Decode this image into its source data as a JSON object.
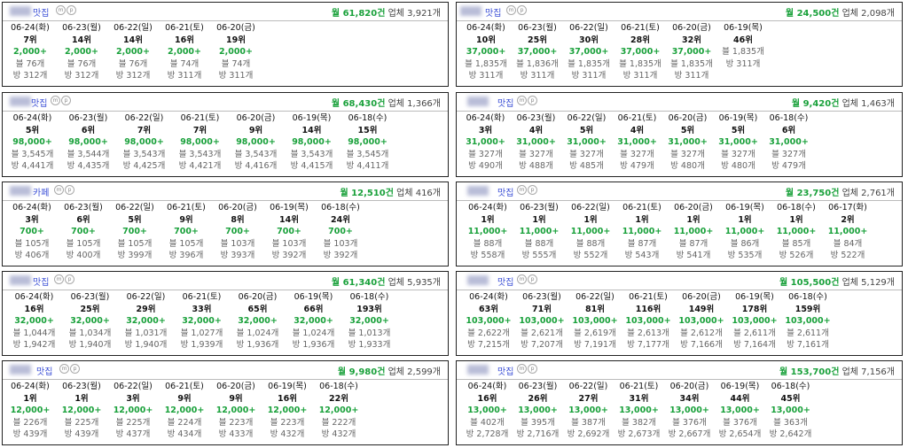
{
  "cards": [
    {
      "category": "맛집",
      "volume": "월 61,820건",
      "industry": "업체 3,921개",
      "days": [
        {
          "date": "06-24(화)",
          "rank": "7위",
          "search": "2,000+",
          "blog": "블 76개",
          "bang": "방 312개"
        },
        {
          "date": "06-23(월)",
          "rank": "14위",
          "search": "2,000+",
          "blog": "블 76개",
          "bang": "방 312개"
        },
        {
          "date": "06-22(일)",
          "rank": "14위",
          "search": "2,000+",
          "blog": "블 76개",
          "bang": "방 312개"
        },
        {
          "date": "06-21(토)",
          "rank": "16위",
          "search": "2,000+",
          "blog": "블 74개",
          "bang": "방 311개"
        },
        {
          "date": "06-20(금)",
          "rank": "19위",
          "search": "2,000+",
          "blog": "블 74개",
          "bang": "방 311개"
        }
      ]
    },
    {
      "category": "맛집",
      "volume": "월 24,500건",
      "industry": "업체 2,098개",
      "days": [
        {
          "date": "06-24(화)",
          "rank": "10위",
          "search": "37,000+",
          "blog": "블 1,835개",
          "bang": "방 311개"
        },
        {
          "date": "06-23(월)",
          "rank": "25위",
          "search": "37,000+",
          "blog": "블 1,836개",
          "bang": "방 311개"
        },
        {
          "date": "06-22(일)",
          "rank": "30위",
          "search": "37,000+",
          "blog": "블 1,835개",
          "bang": "방 311개"
        },
        {
          "date": "06-21(토)",
          "rank": "28위",
          "search": "37,000+",
          "blog": "블 1,835개",
          "bang": "방 311개"
        },
        {
          "date": "06-20(금)",
          "rank": "32위",
          "search": "37,000+",
          "blog": "블 1,835개",
          "bang": "방 311개"
        },
        {
          "date": "06-19(목)",
          "rank": "46위",
          "search": "",
          "blog": "블 1,835개",
          "bang": "방 311개"
        }
      ]
    },
    {
      "category": "맛집",
      "volume": "월 68,430건",
      "industry": "업체 1,366개",
      "days": [
        {
          "date": "06-24(화)",
          "rank": "5위",
          "search": "98,000+",
          "blog": "블 3,545개",
          "bang": "방 4,441개"
        },
        {
          "date": "06-23(월)",
          "rank": "6위",
          "search": "98,000+",
          "blog": "블 3,544개",
          "bang": "방 4,435개"
        },
        {
          "date": "06-22(일)",
          "rank": "7위",
          "search": "98,000+",
          "blog": "블 3,543개",
          "bang": "방 4,425개"
        },
        {
          "date": "06-21(토)",
          "rank": "7위",
          "search": "98,000+",
          "blog": "블 3,543개",
          "bang": "방 4,421개"
        },
        {
          "date": "06-20(금)",
          "rank": "9위",
          "search": "98,000+",
          "blog": "블 3,543개",
          "bang": "방 4,416개"
        },
        {
          "date": "06-19(목)",
          "rank": "14위",
          "search": "98,000+",
          "blog": "블 3,543개",
          "bang": "방 4,415개"
        },
        {
          "date": "06-18(수)",
          "rank": "15위",
          "search": "98,000+",
          "blog": "블 3,545개",
          "bang": "방 4,411개"
        }
      ]
    },
    {
      "category": "맛집",
      "volume": "월 9,420건",
      "industry": "업체 1,463개",
      "days": [
        {
          "date": "06-24(화)",
          "rank": "3위",
          "search": "31,000+",
          "blog": "블 327개",
          "bang": "방 490개"
        },
        {
          "date": "06-23(월)",
          "rank": "4위",
          "search": "31,000+",
          "blog": "블 327개",
          "bang": "방 488개"
        },
        {
          "date": "06-22(일)",
          "rank": "5위",
          "search": "31,000+",
          "blog": "블 327개",
          "bang": "방 485개"
        },
        {
          "date": "06-21(토)",
          "rank": "4위",
          "search": "31,000+",
          "blog": "블 327개",
          "bang": "방 479개"
        },
        {
          "date": "06-20(금)",
          "rank": "5위",
          "search": "31,000+",
          "blog": "블 327개",
          "bang": "방 480개"
        },
        {
          "date": "06-19(목)",
          "rank": "5위",
          "search": "31,000+",
          "blog": "블 327개",
          "bang": "방 480개"
        },
        {
          "date": "06-18(수)",
          "rank": "6위",
          "search": "31,000+",
          "blog": "블 327개",
          "bang": "방 479개"
        }
      ]
    },
    {
      "category": "카페",
      "volume": "월 12,510건",
      "industry": "업체 416개",
      "days": [
        {
          "date": "06-24(화)",
          "rank": "3위",
          "search": "700+",
          "blog": "블 105개",
          "bang": "방 406개"
        },
        {
          "date": "06-23(월)",
          "rank": "6위",
          "search": "700+",
          "blog": "블 105개",
          "bang": "방 400개"
        },
        {
          "date": "06-22(일)",
          "rank": "5위",
          "search": "700+",
          "blog": "블 105개",
          "bang": "방 399개"
        },
        {
          "date": "06-21(토)",
          "rank": "9위",
          "search": "700+",
          "blog": "블 105개",
          "bang": "방 396개"
        },
        {
          "date": "06-20(금)",
          "rank": "8위",
          "search": "700+",
          "blog": "블 103개",
          "bang": "방 393개"
        },
        {
          "date": "06-19(목)",
          "rank": "14위",
          "search": "700+",
          "blog": "블 103개",
          "bang": "방 392개"
        },
        {
          "date": "06-18(수)",
          "rank": "24위",
          "search": "700+",
          "blog": "블 103개",
          "bang": "방 392개"
        }
      ]
    },
    {
      "category": "맛집",
      "volume": "월 23,750건",
      "industry": "업체 2,761개",
      "days": [
        {
          "date": "06-24(화)",
          "rank": "1위",
          "search": "11,000+",
          "blog": "블 88개",
          "bang": "방 558개"
        },
        {
          "date": "06-23(월)",
          "rank": "1위",
          "search": "11,000+",
          "blog": "블 88개",
          "bang": "방 555개"
        },
        {
          "date": "06-22(일)",
          "rank": "1위",
          "search": "11,000+",
          "blog": "블 88개",
          "bang": "방 552개"
        },
        {
          "date": "06-21(토)",
          "rank": "1위",
          "search": "11,000+",
          "blog": "블 87개",
          "bang": "방 543개"
        },
        {
          "date": "06-20(금)",
          "rank": "1위",
          "search": "11,000+",
          "blog": "블 87개",
          "bang": "방 541개"
        },
        {
          "date": "06-19(목)",
          "rank": "1위",
          "search": "11,000+",
          "blog": "블 86개",
          "bang": "방 535개"
        },
        {
          "date": "06-18(수)",
          "rank": "1위",
          "search": "11,000+",
          "blog": "블 85개",
          "bang": "방 526개"
        },
        {
          "date": "06-17(화)",
          "rank": "2위",
          "search": "11,000+",
          "blog": "블 84개",
          "bang": "방 522개"
        }
      ]
    },
    {
      "category": "맛집",
      "volume": "월 61,340건",
      "industry": "업체 5,935개",
      "days": [
        {
          "date": "06-24(화)",
          "rank": "16위",
          "search": "32,000+",
          "blog": "블 1,044개",
          "bang": "방 1,942개"
        },
        {
          "date": "06-23(월)",
          "rank": "25위",
          "search": "32,000+",
          "blog": "블 1,034개",
          "bang": "방 1,940개"
        },
        {
          "date": "06-22(일)",
          "rank": "29위",
          "search": "32,000+",
          "blog": "블 1,031개",
          "bang": "방 1,940개"
        },
        {
          "date": "06-21(토)",
          "rank": "33위",
          "search": "32,000+",
          "blog": "블 1,027개",
          "bang": "방 1,939개"
        },
        {
          "date": "06-20(금)",
          "rank": "65위",
          "search": "32,000+",
          "blog": "블 1,024개",
          "bang": "방 1,936개"
        },
        {
          "date": "06-19(목)",
          "rank": "66위",
          "search": "32,000+",
          "blog": "블 1,024개",
          "bang": "방 1,936개"
        },
        {
          "date": "06-18(수)",
          "rank": "193위",
          "search": "32,000+",
          "blog": "블 1,013개",
          "bang": "방 1,933개"
        }
      ]
    },
    {
      "category": "맛집",
      "volume": "월 105,500건",
      "industry": "업체 5,129개",
      "days": [
        {
          "date": "06-24(화)",
          "rank": "63위",
          "search": "103,000+",
          "blog": "블 2,622개",
          "bang": "방 7,215개"
        },
        {
          "date": "06-23(월)",
          "rank": "71위",
          "search": "103,000+",
          "blog": "블 2,621개",
          "bang": "방 7,207개"
        },
        {
          "date": "06-22(일)",
          "rank": "81위",
          "search": "103,000+",
          "blog": "블 2,619개",
          "bang": "방 7,191개"
        },
        {
          "date": "06-21(토)",
          "rank": "116위",
          "search": "103,000+",
          "blog": "블 2,613개",
          "bang": "방 7,177개"
        },
        {
          "date": "06-20(금)",
          "rank": "149위",
          "search": "103,000+",
          "blog": "블 2,612개",
          "bang": "방 7,166개"
        },
        {
          "date": "06-19(목)",
          "rank": "178위",
          "search": "103,000+",
          "blog": "블 2,611개",
          "bang": "방 7,164개"
        },
        {
          "date": "06-18(수)",
          "rank": "159위",
          "search": "103,000+",
          "blog": "블 2,611개",
          "bang": "방 7,161개"
        }
      ]
    },
    {
      "category": "맛집",
      "volume": "월 9,980건",
      "industry": "업체 2,599개",
      "days": [
        {
          "date": "06-24(화)",
          "rank": "1위",
          "search": "12,000+",
          "blog": "블 226개",
          "bang": "방 439개"
        },
        {
          "date": "06-23(월)",
          "rank": "1위",
          "search": "12,000+",
          "blog": "블 225개",
          "bang": "방 439개"
        },
        {
          "date": "06-22(일)",
          "rank": "3위",
          "search": "12,000+",
          "blog": "블 225개",
          "bang": "방 437개"
        },
        {
          "date": "06-21(토)",
          "rank": "9위",
          "search": "12,000+",
          "blog": "블 224개",
          "bang": "방 434개"
        },
        {
          "date": "06-20(금)",
          "rank": "9위",
          "search": "12,000+",
          "blog": "블 223개",
          "bang": "방 433개"
        },
        {
          "date": "06-19(목)",
          "rank": "16위",
          "search": "12,000+",
          "blog": "블 223개",
          "bang": "방 432개"
        },
        {
          "date": "06-18(수)",
          "rank": "22위",
          "search": "12,000+",
          "blog": "블 222개",
          "bang": "방 432개"
        }
      ]
    },
    {
      "category": "맛집",
      "volume": "월 153,700건",
      "industry": "업체 7,156개",
      "days": [
        {
          "date": "06-24(화)",
          "rank": "16위",
          "search": "13,000+",
          "blog": "블 402개",
          "bang": "방 2,728개"
        },
        {
          "date": "06-23(월)",
          "rank": "26위",
          "search": "13,000+",
          "blog": "블 395개",
          "bang": "방 2,716개"
        },
        {
          "date": "06-22(일)",
          "rank": "27위",
          "search": "13,000+",
          "blog": "블 387개",
          "bang": "방 2,692개"
        },
        {
          "date": "06-21(토)",
          "rank": "31위",
          "search": "13,000+",
          "blog": "블 382개",
          "bang": "방 2,673개"
        },
        {
          "date": "06-20(금)",
          "rank": "34위",
          "search": "13,000+",
          "blog": "블 376개",
          "bang": "방 2,667개"
        },
        {
          "date": "06-19(목)",
          "rank": "44위",
          "search": "13,000+",
          "blog": "블 376개",
          "bang": "방 2,654개"
        },
        {
          "date": "06-18(수)",
          "rank": "45위",
          "search": "13,000+",
          "blog": "블 363개",
          "bang": "방 2,642개"
        }
      ]
    }
  ],
  "badges": [
    "m",
    "p"
  ],
  "colors": {
    "accent_green": "#1aa13b",
    "category_blue": "#3b4fd6"
  }
}
